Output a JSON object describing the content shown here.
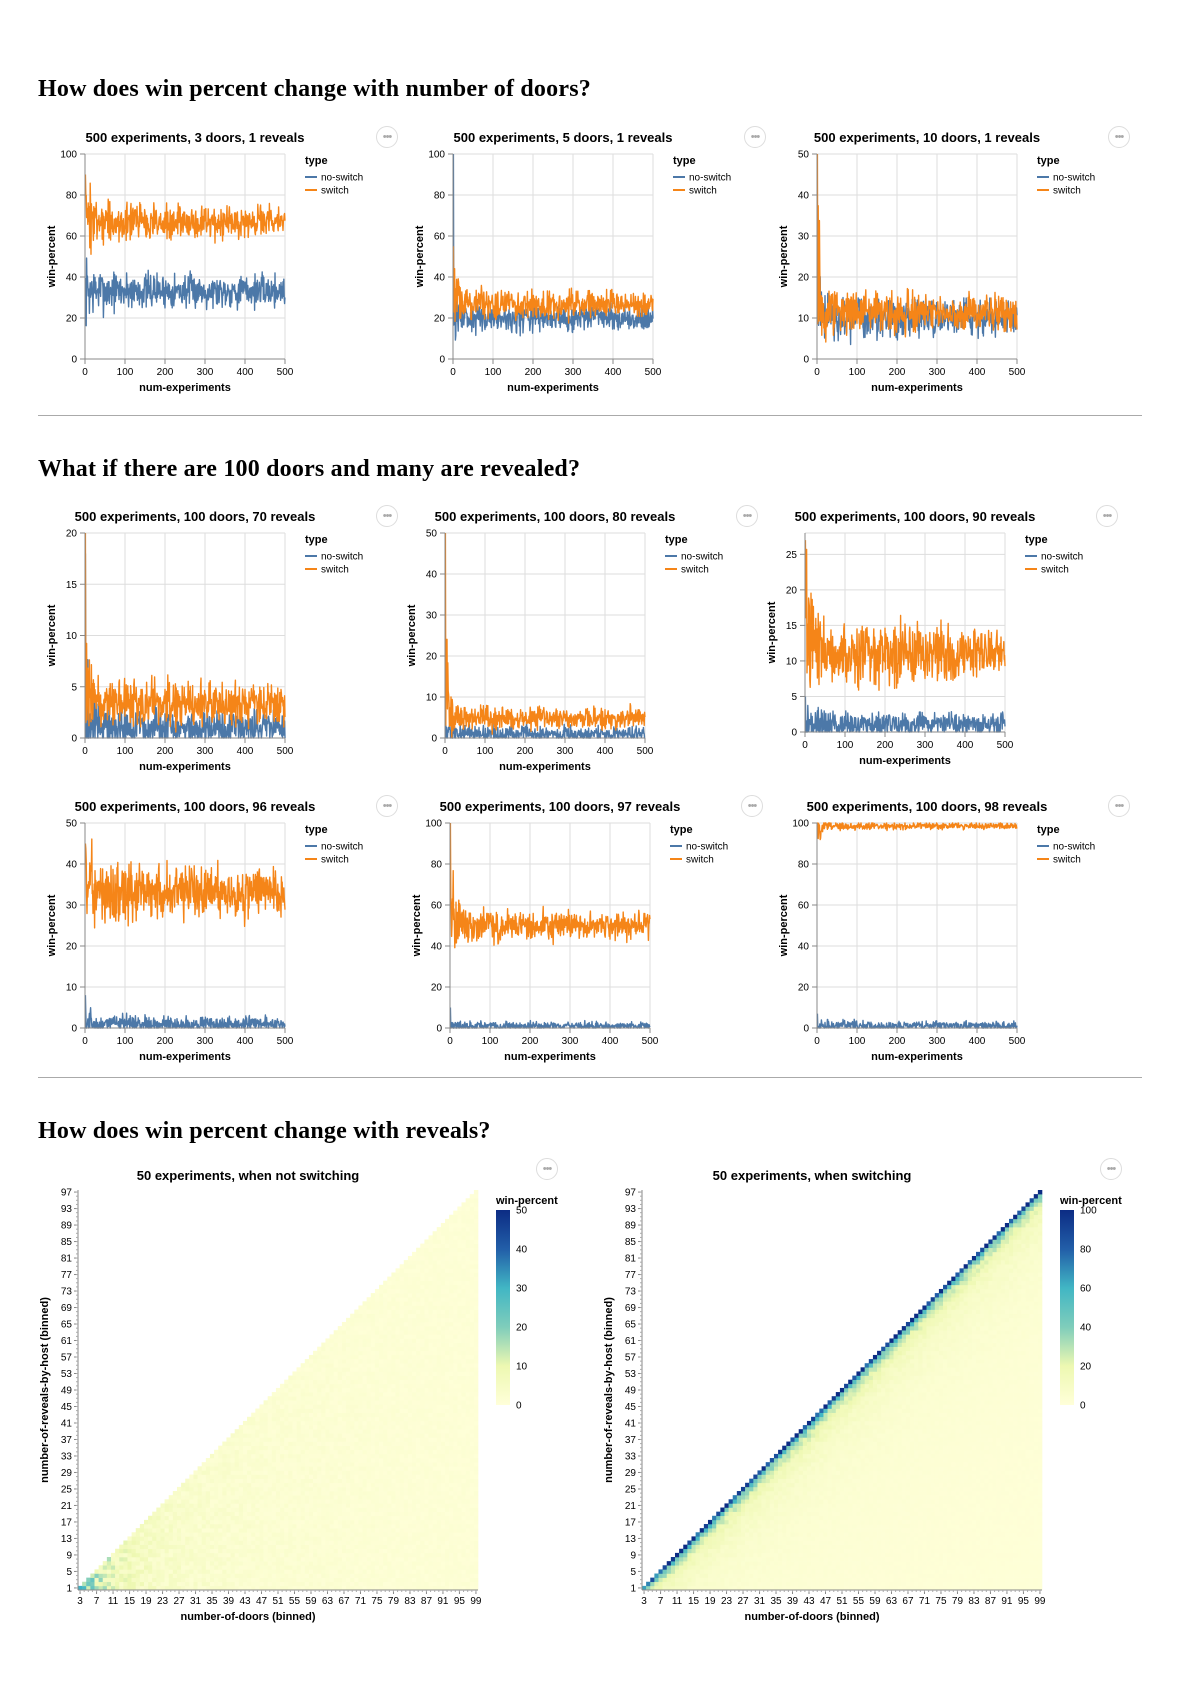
{
  "sections": [
    {
      "title": "How does win percent change with number of doors?"
    },
    {
      "title": "What if there are 100 doors and many are revealed?"
    },
    {
      "title": "How does win percent change with reveals?"
    }
  ],
  "menu_icon": "ellipsis-icon",
  "colors": {
    "no_switch": "#4c78a8",
    "switch": "#f58518",
    "grid": "#dddddd"
  },
  "chart_data": [
    {
      "type": "line",
      "title": "500 experiments, 3 doors, 1 reveals",
      "xlabel": "num-experiments",
      "ylabel": "win-percent",
      "xlim": [
        0,
        500
      ],
      "ylim": [
        0,
        100
      ],
      "xticks": [
        0,
        100,
        200,
        300,
        400,
        500
      ],
      "yticks": [
        0,
        20,
        40,
        60,
        80,
        100
      ],
      "legend_title": "type",
      "legend_position": "right",
      "x": "1..500",
      "series": [
        {
          "name": "no-switch",
          "mean": 33.3,
          "noise": 4.5,
          "spike_start": 0,
          "spike_decay": 0
        },
        {
          "name": "switch",
          "mean": 66.7,
          "noise": 4.5,
          "spike_start": 90,
          "spike_decay": 20
        }
      ]
    },
    {
      "type": "line",
      "title": "500 experiments, 5 doors, 1 reveals",
      "xlabel": "num-experiments",
      "ylabel": "win-percent",
      "xlim": [
        0,
        500
      ],
      "ylim": [
        0,
        100
      ],
      "xticks": [
        0,
        100,
        200,
        300,
        400,
        500
      ],
      "yticks": [
        0,
        20,
        40,
        60,
        80,
        100
      ],
      "legend_title": "type",
      "legend_position": "right",
      "x": "1..500",
      "series": [
        {
          "name": "no-switch",
          "mean": 20,
          "noise": 3.5,
          "spike_start": 100,
          "spike_decay": 4
        },
        {
          "name": "switch",
          "mean": 26.7,
          "noise": 3.5,
          "spike_start": 55,
          "spike_decay": 10
        }
      ]
    },
    {
      "type": "line",
      "title": "500 experiments, 10 doors, 1 reveals",
      "xlabel": "num-experiments",
      "ylabel": "win-percent",
      "xlim": [
        0,
        500
      ],
      "ylim": [
        0,
        50
      ],
      "xticks": [
        0,
        100,
        200,
        300,
        400,
        500
      ],
      "yticks": [
        0,
        10,
        20,
        30,
        40,
        50
      ],
      "legend_title": "type",
      "legend_position": "right",
      "x": "1..500",
      "series": [
        {
          "name": "no-switch",
          "mean": 10,
          "noise": 2.5,
          "spike_start": 30,
          "spike_decay": 10
        },
        {
          "name": "switch",
          "mean": 11.3,
          "noise": 2.5,
          "spike_start": 50,
          "spike_decay": 8
        }
      ]
    },
    {
      "type": "line",
      "title": "500 experiments, 100 doors, 70 reveals",
      "xlabel": "num-experiments",
      "ylabel": "win-percent",
      "xlim": [
        0,
        500
      ],
      "ylim": [
        0,
        20
      ],
      "xticks": [
        0,
        100,
        200,
        300,
        400,
        500
      ],
      "yticks": [
        0,
        5,
        10,
        15,
        20
      ],
      "legend_title": "type",
      "legend_position": "right",
      "x": "1..500",
      "series": [
        {
          "name": "no-switch",
          "mean": 1,
          "noise": 1.0,
          "spike_start": 18,
          "spike_decay": 5
        },
        {
          "name": "switch",
          "mean": 3.3,
          "noise": 1.2,
          "spike_start": 20,
          "spike_decay": 10
        }
      ]
    },
    {
      "type": "line",
      "title": "500 experiments, 100 doors, 80 reveals",
      "xlabel": "num-experiments",
      "ylabel": "win-percent",
      "xlim": [
        0,
        500
      ],
      "ylim": [
        0,
        50
      ],
      "xticks": [
        0,
        100,
        200,
        300,
        400,
        500
      ],
      "yticks": [
        0,
        10,
        20,
        30,
        40,
        50
      ],
      "legend_title": "type",
      "legend_position": "right",
      "x": "1..500",
      "series": [
        {
          "name": "no-switch",
          "mean": 1,
          "noise": 1.0,
          "spike_start": 5,
          "spike_decay": 5
        },
        {
          "name": "switch",
          "mean": 4.9,
          "noise": 1.5,
          "spike_start": 50,
          "spike_decay": 6
        }
      ]
    },
    {
      "type": "line",
      "title": "500 experiments, 100 doors, 90 reveals",
      "xlabel": "num-experiments",
      "ylabel": "win-percent",
      "xlim": [
        0,
        500
      ],
      "ylim": [
        0,
        28
      ],
      "xticks": [
        0,
        100,
        200,
        300,
        400,
        500
      ],
      "yticks": [
        0,
        5,
        10,
        15,
        20,
        25
      ],
      "legend_title": "type",
      "legend_position": "right",
      "x": "1..500",
      "series": [
        {
          "name": "no-switch",
          "mean": 1,
          "noise": 0.9,
          "spike_start": 5,
          "spike_decay": 5
        },
        {
          "name": "switch",
          "mean": 11,
          "noise": 2.3,
          "spike_start": 27,
          "spike_decay": 15
        }
      ]
    },
    {
      "type": "line",
      "title": "500 experiments, 100 doors, 96 reveals",
      "xlabel": "num-experiments",
      "ylabel": "win-percent",
      "xlim": [
        0,
        500
      ],
      "ylim": [
        0,
        50
      ],
      "xticks": [
        0,
        100,
        200,
        300,
        400,
        500
      ],
      "yticks": [
        0,
        10,
        20,
        30,
        40,
        50
      ],
      "legend_title": "type",
      "legend_position": "right",
      "x": "1..500",
      "series": [
        {
          "name": "no-switch",
          "mean": 1,
          "noise": 1.0,
          "spike_start": 8,
          "spike_decay": 5
        },
        {
          "name": "switch",
          "mean": 33,
          "noise": 3.5,
          "spike_start": 45,
          "spike_decay": 15
        }
      ]
    },
    {
      "type": "line",
      "title": "500 experiments, 100 doors, 97 reveals",
      "xlabel": "num-experiments",
      "ylabel": "win-percent",
      "xlim": [
        0,
        500
      ],
      "ylim": [
        0,
        100
      ],
      "xticks": [
        0,
        100,
        200,
        300,
        400,
        500
      ],
      "yticks": [
        0,
        20,
        40,
        60,
        80,
        100
      ],
      "legend_title": "type",
      "legend_position": "right",
      "x": "1..500",
      "series": [
        {
          "name": "no-switch",
          "mean": 1,
          "noise": 1.1,
          "spike_start": 10,
          "spike_decay": 5
        },
        {
          "name": "switch",
          "mean": 50,
          "noise": 4.0,
          "spike_start": 100,
          "spike_decay": 15
        }
      ]
    },
    {
      "type": "line",
      "title": "500 experiments, 100 doors, 98 reveals",
      "xlabel": "num-experiments",
      "ylabel": "win-percent",
      "xlim": [
        0,
        500
      ],
      "ylim": [
        0,
        100
      ],
      "xticks": [
        0,
        100,
        200,
        300,
        400,
        500
      ],
      "yticks": [
        0,
        20,
        40,
        60,
        80,
        100
      ],
      "legend_title": "type",
      "legend_position": "right",
      "x": "1..500",
      "series": [
        {
          "name": "no-switch",
          "mean": 1,
          "noise": 1.2,
          "spike_start": 7,
          "spike_decay": 5
        },
        {
          "name": "switch",
          "mean": 98.5,
          "noise": 0.9,
          "spike_start": 99,
          "spike_decay": 5
        }
      ]
    },
    {
      "type": "heatmap",
      "title": "50 experiments, when not switching",
      "xlabel": "number-of-doors (binned)",
      "ylabel": "number-of-reveals-by-host (binned)",
      "legend_title": "win-percent",
      "legend_position": "right",
      "mode": "no-switch",
      "x_range": [
        3,
        99
      ],
      "y_range": [
        1,
        97
      ],
      "color_domain": [
        0,
        50
      ],
      "color_ticks": [
        0,
        10,
        20,
        30,
        40,
        50
      ],
      "x_tick_labels": [
        "3",
        "7",
        "11",
        "15",
        "19",
        "23",
        "27",
        "31",
        "35",
        "39",
        "43",
        "47",
        "51",
        "55",
        "59",
        "63",
        "67",
        "71",
        "75",
        "79",
        "83",
        "87",
        "91",
        "95",
        "99"
      ],
      "y_tick_labels": [
        "1",
        "5",
        "9",
        "13",
        "17",
        "21",
        "25",
        "29",
        "33",
        "37",
        "41",
        "45",
        "49",
        "53",
        "57",
        "61",
        "65",
        "69",
        "73",
        "77",
        "81",
        "85",
        "89",
        "93",
        "97"
      ]
    },
    {
      "type": "heatmap",
      "title": "50 experiments, when switching",
      "xlabel": "number-of-doors (binned)",
      "ylabel": "number-of-reveals-by-host (binned)",
      "legend_title": "win-percent",
      "legend_position": "right",
      "mode": "switch",
      "x_range": [
        3,
        99
      ],
      "y_range": [
        1,
        97
      ],
      "color_domain": [
        0,
        100
      ],
      "color_ticks": [
        0,
        20,
        40,
        60,
        80,
        100
      ],
      "x_tick_labels": [
        "3",
        "7",
        "11",
        "15",
        "19",
        "23",
        "27",
        "31",
        "35",
        "39",
        "43",
        "47",
        "51",
        "55",
        "59",
        "63",
        "67",
        "71",
        "75",
        "79",
        "83",
        "87",
        "91",
        "95",
        "99"
      ],
      "y_tick_labels": [
        "1",
        "5",
        "9",
        "13",
        "17",
        "21",
        "25",
        "29",
        "33",
        "37",
        "41",
        "45",
        "49",
        "53",
        "57",
        "61",
        "65",
        "69",
        "73",
        "77",
        "81",
        "85",
        "89",
        "93",
        "97"
      ]
    }
  ]
}
